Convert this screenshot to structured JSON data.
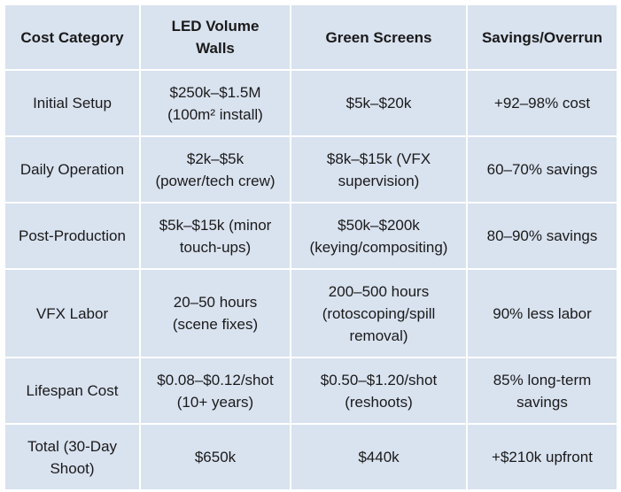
{
  "table": {
    "headers": [
      [
        "Cost Category"
      ],
      [
        "LED Volume",
        "Walls"
      ],
      [
        "Green Screens"
      ],
      [
        "Savings/Overrun"
      ]
    ],
    "rows": [
      {
        "category": [
          "Initial Setup"
        ],
        "led": [
          "$250k–$1.5M",
          "(100m² install)"
        ],
        "green": [
          "$5k–$20k"
        ],
        "savings": [
          "+92–98% cost"
        ]
      },
      {
        "category": [
          "Daily Operation"
        ],
        "led": [
          "$2k–$5k",
          "(power/tech crew)"
        ],
        "green": [
          "$8k–$15k (VFX",
          "supervision)"
        ],
        "savings": [
          "60–70% savings"
        ]
      },
      {
        "category": [
          "Post-Production"
        ],
        "led": [
          "$5k–$15k (minor",
          "touch-ups)"
        ],
        "green": [
          "$50k–$200k",
          "(keying/compositing)"
        ],
        "savings": [
          "80–90% savings"
        ]
      },
      {
        "category": [
          "VFX Labor"
        ],
        "led": [
          "20–50 hours",
          "(scene fixes)"
        ],
        "green": [
          "200–500 hours",
          "(rotoscoping/spill",
          "removal)"
        ],
        "savings": [
          "90% less labor"
        ]
      },
      {
        "category": [
          "Lifespan Cost"
        ],
        "led": [
          "$0.08–$0.12/shot",
          "(10+ years)"
        ],
        "green": [
          "$0.50–$1.20/shot",
          "(reshoots)"
        ],
        "savings": [
          "85% long-term",
          "savings"
        ]
      },
      {
        "category": [
          "Total (30-Day",
          "Shoot)"
        ],
        "led": [
          "$650k"
        ],
        "green": [
          "$440k"
        ],
        "savings": [
          "+$210k upfront"
        ]
      }
    ]
  },
  "colors": {
    "cell_bg": "#d9e2ef",
    "border": "#ffffff",
    "text": "#1a1a1a"
  }
}
